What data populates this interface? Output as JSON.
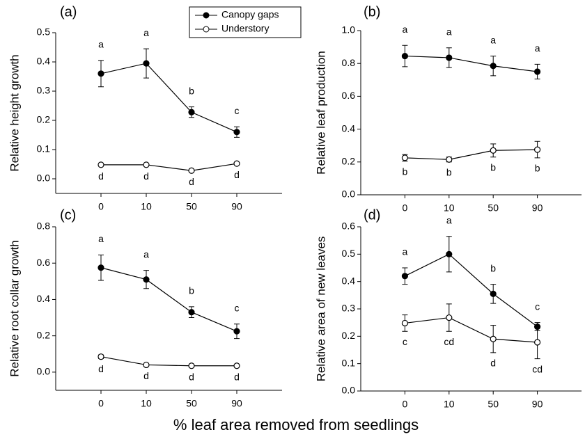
{
  "x_label": "% leaf area removed from seedlings",
  "chart_data": [
    {
      "type": "line",
      "panel_label": "(a)",
      "y_label": "Relative height growth",
      "categories": [
        "0",
        "10",
        "50",
        "90"
      ],
      "ylim": [
        -0.05,
        0.5
      ],
      "yticks": [
        {
          "value": 0,
          "label": "0.0"
        },
        0.1,
        0.2,
        0.3,
        0.4,
        0.5
      ],
      "legend": "top-center",
      "series": [
        {
          "name": "Canopy gaps",
          "color": "#000000",
          "fill": "#000000",
          "values": [
            0.36,
            0.395,
            0.228,
            0.16
          ],
          "errors": [
            0.045,
            0.05,
            0.018,
            0.018
          ],
          "labels": [
            "a",
            "a",
            "b",
            "c"
          ],
          "label_side": "above"
        },
        {
          "name": "Understory",
          "color": "#000000",
          "fill": "#ffffff",
          "values": [
            0.048,
            0.048,
            0.028,
            0.052
          ],
          "errors": [
            0.003,
            0.003,
            0.003,
            0.003
          ],
          "labels": [
            "d",
            "d",
            "d",
            "d"
          ],
          "label_side": "below"
        }
      ]
    },
    {
      "type": "line",
      "panel_label": "(b)",
      "y_label": "Relative leaf production",
      "categories": [
        "0",
        "10",
        "50",
        "90"
      ],
      "ylim": [
        0,
        1.0
      ],
      "yticks": [
        {
          "value": 0,
          "label": "0.0"
        },
        0.2,
        0.4,
        0.6,
        0.8,
        {
          "value": 1,
          "label": "1.0"
        }
      ],
      "series": [
        {
          "color": "#000000",
          "fill": "#000000",
          "values": [
            0.845,
            0.835,
            0.785,
            0.75
          ],
          "errors": [
            0.065,
            0.06,
            0.06,
            0.045
          ],
          "labels": [
            "a",
            "a",
            "a",
            "a"
          ],
          "label_side": "above"
        },
        {
          "color": "#000000",
          "fill": "#ffffff",
          "values": [
            0.225,
            0.215,
            0.27,
            0.275
          ],
          "errors": [
            0.02,
            0.015,
            0.04,
            0.05
          ],
          "labels": [
            "b",
            "b",
            "b",
            "b"
          ],
          "label_side": "below"
        }
      ]
    },
    {
      "type": "line",
      "panel_label": "(c)",
      "y_label": "Relative root collar growth",
      "categories": [
        "0",
        "10",
        "50",
        "90"
      ],
      "ylim": [
        -0.1,
        0.8
      ],
      "yticks": [
        {
          "value": 0,
          "label": "0.0"
        },
        0.2,
        0.4,
        0.6,
        0.8
      ],
      "series": [
        {
          "color": "#000000",
          "fill": "#000000",
          "values": [
            0.575,
            0.51,
            0.33,
            0.225
          ],
          "errors": [
            0.07,
            0.05,
            0.03,
            0.04
          ],
          "labels": [
            "a",
            "a",
            "b",
            "c"
          ],
          "label_side": "above"
        },
        {
          "color": "#000000",
          "fill": "#ffffff",
          "values": [
            0.085,
            0.04,
            0.035,
            0.035
          ],
          "errors": [
            0.01,
            0.004,
            0.004,
            0.004
          ],
          "labels": [
            "d",
            "d",
            "d",
            "d"
          ],
          "label_side": "below"
        }
      ]
    },
    {
      "type": "line",
      "panel_label": "(d)",
      "y_label": "Relative area of new leaves",
      "categories": [
        "0",
        "10",
        "50",
        "90"
      ],
      "ylim": [
        0,
        0.6
      ],
      "yticks": [
        {
          "value": 0,
          "label": "0.0"
        },
        0.1,
        0.2,
        0.3,
        0.4,
        0.5,
        0.6
      ],
      "series": [
        {
          "color": "#000000",
          "fill": "#000000",
          "values": [
            0.42,
            0.5,
            0.355,
            0.235
          ],
          "errors": [
            0.03,
            0.065,
            0.035,
            0.015
          ],
          "labels": [
            "a",
            "a",
            "b",
            "c"
          ],
          "label_side": "above"
        },
        {
          "color": "#000000",
          "fill": "#ffffff",
          "values": [
            0.248,
            0.268,
            0.19,
            0.178
          ],
          "errors": [
            0.03,
            0.05,
            0.05,
            0.06
          ],
          "labels": [
            "c",
            "cd",
            "d",
            "cd"
          ],
          "label_side": "below"
        }
      ]
    }
  ]
}
